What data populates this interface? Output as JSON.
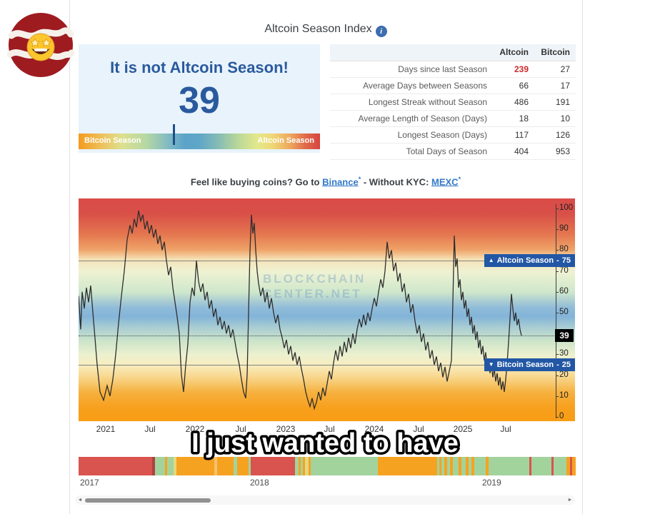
{
  "page": {
    "title": "Altcoin Season Index",
    "info_icon": "i"
  },
  "season_panel": {
    "headline": "It is not Altcoin Season!",
    "value": "39",
    "marker_percent": 39,
    "left_label": "Bitcoin Season",
    "right_label": "Altcoin Season"
  },
  "stats_table": {
    "columns": [
      "Altcoin",
      "Bitcoin"
    ],
    "rows": [
      {
        "label": "Days since last Season",
        "altcoin": "239",
        "bitcoin": "27",
        "altcoin_color": "#cc2b2b"
      },
      {
        "label": "Average Days between Seasons",
        "altcoin": "66",
        "bitcoin": "17"
      },
      {
        "label": "Longest Streak without Season",
        "altcoin": "486",
        "bitcoin": "191"
      },
      {
        "label": "Average Length of Season (Days)",
        "altcoin": "18",
        "bitcoin": "10"
      },
      {
        "label": "Longest Season (Days)",
        "altcoin": "117",
        "bitcoin": "126"
      },
      {
        "label": "Total Days of Season",
        "altcoin": "404",
        "bitcoin": "953"
      }
    ]
  },
  "promo": {
    "prefix": "Feel like buying coins? Go to ",
    "link1": "Binance",
    "asterisk": "*",
    "middle": " - Without KYC: ",
    "link2": "MEXC"
  },
  "chart": {
    "watermark_line1": "BLOCKCHAIN",
    "watermark_line2": "CENTER.NET",
    "badge_up": {
      "arrow": "▲",
      "label": "Altcoin Season",
      "sep": "-",
      "value": "75"
    },
    "badge_down": {
      "arrow": "▼",
      "label": "Bitcoin Season",
      "sep": "-",
      "value": "25"
    },
    "current_badge": "39",
    "axis_ticks": [
      100,
      90,
      80,
      70,
      60,
      50,
      30,
      20,
      10,
      0
    ],
    "x_ticks": [
      {
        "label": "2021",
        "x": 38
      },
      {
        "label": "Jul",
        "x": 100
      },
      {
        "label": "2022",
        "x": 163
      },
      {
        "label": "Jul",
        "x": 227
      },
      {
        "label": "2023",
        "x": 290
      },
      {
        "label": "Jul",
        "x": 351
      },
      {
        "label": "2024",
        "x": 414
      },
      {
        "label": "Jul",
        "x": 476
      },
      {
        "label": "2025",
        "x": 538
      },
      {
        "label": "Jul",
        "x": 598
      }
    ]
  },
  "chart_data": {
    "type": "line",
    "title": "Altcoin Season Index",
    "ylim": [
      0,
      100
    ],
    "x_tick_labels": [
      "2021",
      "Jul",
      "2022",
      "Jul",
      "2023",
      "Jul",
      "2024",
      "Jul",
      "2025",
      "Jul"
    ],
    "thresholds": {
      "altcoin_season": 75,
      "bitcoin_season": 25
    },
    "current_value": 39,
    "legend_position": "none",
    "grid": "threshold-lines-only",
    "series": [
      {
        "name": "Altcoin Season Index",
        "points": [
          [
            0,
            58
          ],
          [
            3,
            42
          ],
          [
            5,
            60
          ],
          [
            8,
            52
          ],
          [
            11,
            62
          ],
          [
            14,
            55
          ],
          [
            17,
            63
          ],
          [
            20,
            50
          ],
          [
            22,
            42
          ],
          [
            26,
            25
          ],
          [
            30,
            12
          ],
          [
            35,
            8
          ],
          [
            40,
            15
          ],
          [
            44,
            10
          ],
          [
            48,
            18
          ],
          [
            52,
            30
          ],
          [
            56,
            45
          ],
          [
            60,
            58
          ],
          [
            64,
            70
          ],
          [
            68,
            85
          ],
          [
            72,
            92
          ],
          [
            75,
            88
          ],
          [
            78,
            95
          ],
          [
            81,
            91
          ],
          [
            84,
            99
          ],
          [
            87,
            94
          ],
          [
            90,
            97
          ],
          [
            93,
            90
          ],
          [
            96,
            94
          ],
          [
            99,
            88
          ],
          [
            102,
            92
          ],
          [
            105,
            86
          ],
          [
            108,
            90
          ],
          [
            111,
            83
          ],
          [
            114,
            87
          ],
          [
            117,
            80
          ],
          [
            120,
            84
          ],
          [
            123,
            75
          ],
          [
            126,
            68
          ],
          [
            129,
            72
          ],
          [
            132,
            62
          ],
          [
            135,
            55
          ],
          [
            138,
            48
          ],
          [
            141,
            40
          ],
          [
            144,
            20
          ],
          [
            147,
            12
          ],
          [
            150,
            25
          ],
          [
            153,
            35
          ],
          [
            156,
            55
          ],
          [
            159,
            62
          ],
          [
            162,
            58
          ],
          [
            165,
            75
          ],
          [
            168,
            65
          ],
          [
            171,
            60
          ],
          [
            174,
            64
          ],
          [
            177,
            56
          ],
          [
            180,
            60
          ],
          [
            183,
            52
          ],
          [
            186,
            56
          ],
          [
            189,
            48
          ],
          [
            192,
            52
          ],
          [
            195,
            44
          ],
          [
            198,
            48
          ],
          [
            201,
            42
          ],
          [
            204,
            46
          ],
          [
            207,
            40
          ],
          [
            210,
            44
          ],
          [
            213,
            38
          ],
          [
            216,
            42
          ],
          [
            219,
            36
          ],
          [
            222,
            30
          ],
          [
            225,
            25
          ],
          [
            228,
            18
          ],
          [
            231,
            12
          ],
          [
            234,
            9
          ],
          [
            236,
            20
          ],
          [
            238,
            50
          ],
          [
            240,
            80
          ],
          [
            242,
            97
          ],
          [
            244,
            88
          ],
          [
            246,
            93
          ],
          [
            248,
            80
          ],
          [
            250,
            70
          ],
          [
            252,
            64
          ],
          [
            255,
            58
          ],
          [
            258,
            62
          ],
          [
            261,
            55
          ],
          [
            264,
            60
          ],
          [
            267,
            52
          ],
          [
            270,
            57
          ],
          [
            273,
            50
          ],
          [
            276,
            45
          ],
          [
            279,
            49
          ],
          [
            282,
            42
          ],
          [
            285,
            38
          ],
          [
            288,
            33
          ],
          [
            291,
            37
          ],
          [
            294,
            30
          ],
          [
            297,
            34
          ],
          [
            300,
            27
          ],
          [
            303,
            31
          ],
          [
            306,
            25
          ],
          [
            309,
            29
          ],
          [
            312,
            23
          ],
          [
            315,
            18
          ],
          [
            318,
            12
          ],
          [
            321,
            8
          ],
          [
            324,
            5
          ],
          [
            327,
            9
          ],
          [
            330,
            4
          ],
          [
            333,
            7
          ],
          [
            336,
            12
          ],
          [
            339,
            8
          ],
          [
            342,
            14
          ],
          [
            345,
            10
          ],
          [
            348,
            16
          ],
          [
            351,
            22
          ],
          [
            354,
            18
          ],
          [
            357,
            26
          ],
          [
            360,
            32
          ],
          [
            363,
            27
          ],
          [
            366,
            34
          ],
          [
            369,
            29
          ],
          [
            372,
            36
          ],
          [
            375,
            31
          ],
          [
            378,
            38
          ],
          [
            381,
            33
          ],
          [
            384,
            40
          ],
          [
            387,
            35
          ],
          [
            390,
            42
          ],
          [
            393,
            47
          ],
          [
            396,
            43
          ],
          [
            399,
            49
          ],
          [
            402,
            44
          ],
          [
            405,
            50
          ],
          [
            408,
            46
          ],
          [
            411,
            52
          ],
          [
            414,
            57
          ],
          [
            417,
            53
          ],
          [
            420,
            60
          ],
          [
            423,
            66
          ],
          [
            426,
            62
          ],
          [
            429,
            70
          ],
          [
            432,
            84
          ],
          [
            435,
            76
          ],
          [
            438,
            80
          ],
          [
            441,
            70
          ],
          [
            444,
            74
          ],
          [
            447,
            65
          ],
          [
            450,
            69
          ],
          [
            453,
            60
          ],
          [
            456,
            64
          ],
          [
            459,
            55
          ],
          [
            462,
            59
          ],
          [
            465,
            50
          ],
          [
            468,
            54
          ],
          [
            471,
            46
          ],
          [
            474,
            40
          ],
          [
            477,
            44
          ],
          [
            480,
            36
          ],
          [
            483,
            40
          ],
          [
            486,
            32
          ],
          [
            489,
            36
          ],
          [
            492,
            28
          ],
          [
            495,
            32
          ],
          [
            498,
            25
          ],
          [
            501,
            29
          ],
          [
            504,
            22
          ],
          [
            507,
            26
          ],
          [
            510,
            19
          ],
          [
            513,
            24
          ],
          [
            516,
            17
          ],
          [
            519,
            22
          ],
          [
            522,
            27
          ],
          [
            524,
            55
          ],
          [
            526,
            87
          ],
          [
            528,
            72
          ],
          [
            530,
            76
          ],
          [
            532,
            62
          ],
          [
            534,
            66
          ],
          [
            536,
            56
          ],
          [
            538,
            60
          ],
          [
            540,
            52
          ],
          [
            542,
            56
          ],
          [
            544,
            48
          ],
          [
            546,
            52
          ],
          [
            548,
            44
          ],
          [
            550,
            48
          ],
          [
            552,
            40
          ],
          [
            554,
            44
          ],
          [
            556,
            37
          ],
          [
            558,
            41
          ],
          [
            560,
            33
          ],
          [
            562,
            37
          ],
          [
            564,
            30
          ],
          [
            566,
            34
          ],
          [
            568,
            27
          ],
          [
            570,
            31
          ],
          [
            572,
            24
          ],
          [
            574,
            28
          ],
          [
            576,
            21
          ],
          [
            578,
            25
          ],
          [
            580,
            19
          ],
          [
            582,
            23
          ],
          [
            584,
            17
          ],
          [
            586,
            21
          ],
          [
            588,
            15
          ],
          [
            590,
            19
          ],
          [
            592,
            13
          ],
          [
            594,
            17
          ],
          [
            596,
            12
          ],
          [
            598,
            18
          ],
          [
            600,
            26
          ],
          [
            602,
            36
          ],
          [
            604,
            47
          ],
          [
            606,
            59
          ],
          [
            608,
            52
          ],
          [
            610,
            46
          ],
          [
            612,
            50
          ],
          [
            614,
            44
          ],
          [
            616,
            47
          ],
          [
            618,
            42
          ],
          [
            620,
            39
          ]
        ]
      }
    ]
  },
  "navigator": {
    "labels": [
      {
        "text": "2017",
        "x": 2
      },
      {
        "text": "2018",
        "x": 240
      },
      {
        "text": "2019",
        "x": 565
      }
    ],
    "segments": [
      [
        103,
        "#d9534f"
      ],
      [
        4,
        "#a94442"
      ],
      [
        14,
        "#a3d39c"
      ],
      [
        3,
        "#f6a221"
      ],
      [
        9,
        "#a3d39c"
      ],
      [
        4,
        "#e3d87f"
      ],
      [
        53,
        "#f6a221"
      ],
      [
        4,
        "#f8c06a"
      ],
      [
        23,
        "#f6a221"
      ],
      [
        5,
        "#a3d39c"
      ],
      [
        16,
        "#f6a221"
      ],
      [
        3,
        "#a3d39c"
      ],
      [
        62,
        "#d9534f"
      ],
      [
        5,
        "#a3d39c"
      ],
      [
        3,
        "#f6a221"
      ],
      [
        3,
        "#a3d39c"
      ],
      [
        3,
        "#f6a221"
      ],
      [
        5,
        "#e3d87f"
      ],
      [
        3,
        "#f6a221"
      ],
      [
        94,
        "#a3d39c"
      ],
      [
        83,
        "#f6a221"
      ],
      [
        3,
        "#a3d39c"
      ],
      [
        3,
        "#f6a221"
      ],
      [
        4,
        "#a3d39c"
      ],
      [
        4,
        "#f6a221"
      ],
      [
        4,
        "#a3d39c"
      ],
      [
        4,
        "#f6a221"
      ],
      [
        8,
        "#a3d39c"
      ],
      [
        4,
        "#f6a221"
      ],
      [
        6,
        "#a3d39c"
      ],
      [
        4,
        "#f6a221"
      ],
      [
        4,
        "#a3d39c"
      ],
      [
        4,
        "#f6a221"
      ],
      [
        16,
        "#a3d39c"
      ],
      [
        4,
        "#f6a221"
      ],
      [
        57,
        "#a3d39c"
      ],
      [
        3,
        "#d9534f"
      ],
      [
        28,
        "#a3d39c"
      ],
      [
        3,
        "#d9534f"
      ],
      [
        18,
        "#a3d39c"
      ],
      [
        5,
        "#f6a221"
      ],
      [
        3,
        "#d9534f"
      ],
      [
        5,
        "#f6a221"
      ]
    ]
  },
  "scrollbar": {
    "left_arrow": "◄",
    "right_arrow": "►"
  },
  "caption": {
    "text": "I just wanted to have"
  },
  "colors": {
    "accent_blue": "#2a5a9e",
    "badge_blue": "#2257a5",
    "highlight_red": "#cc2b2b",
    "season_orange": "#f59a1d",
    "season_red": "#d74440"
  }
}
